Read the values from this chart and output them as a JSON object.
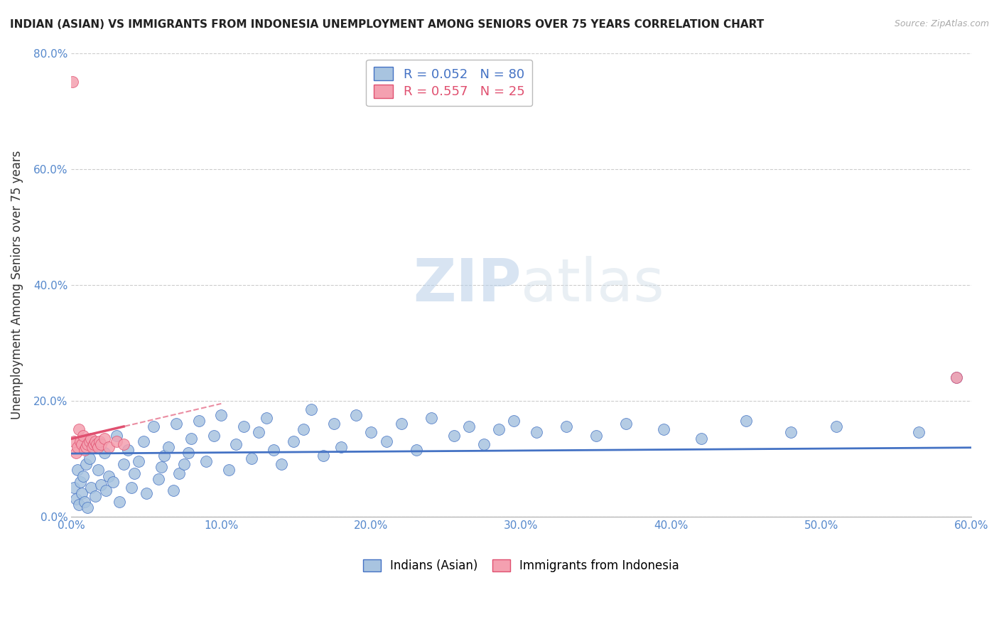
{
  "title": "INDIAN (ASIAN) VS IMMIGRANTS FROM INDONESIA UNEMPLOYMENT AMONG SENIORS OVER 75 YEARS CORRELATION CHART",
  "source": "Source: ZipAtlas.com",
  "ylabel": "Unemployment Among Seniors over 75 years",
  "xmin": 0.0,
  "xmax": 0.6,
  "ymin": 0.0,
  "ymax": 0.8,
  "xticks": [
    0.0,
    0.1,
    0.2,
    0.3,
    0.4,
    0.5,
    0.6
  ],
  "yticks": [
    0.0,
    0.2,
    0.4,
    0.6,
    0.8
  ],
  "blue_R": 0.052,
  "blue_N": 80,
  "pink_R": 0.557,
  "pink_N": 25,
  "blue_color": "#a8c4e0",
  "pink_color": "#f4a0b0",
  "blue_line_color": "#4472c4",
  "pink_line_color": "#e05070",
  "watermark_zip": "ZIP",
  "watermark_atlas": "atlas",
  "legend_label_blue": "Indians (Asian)",
  "legend_label_pink": "Immigrants from Indonesia",
  "blue_scatter_x": [
    0.002,
    0.003,
    0.004,
    0.005,
    0.006,
    0.007,
    0.008,
    0.009,
    0.01,
    0.011,
    0.012,
    0.013,
    0.015,
    0.016,
    0.018,
    0.02,
    0.022,
    0.023,
    0.025,
    0.028,
    0.03,
    0.032,
    0.035,
    0.038,
    0.04,
    0.042,
    0.045,
    0.048,
    0.05,
    0.055,
    0.058,
    0.06,
    0.062,
    0.065,
    0.068,
    0.07,
    0.072,
    0.075,
    0.078,
    0.08,
    0.085,
    0.09,
    0.095,
    0.1,
    0.105,
    0.11,
    0.115,
    0.12,
    0.125,
    0.13,
    0.135,
    0.14,
    0.148,
    0.155,
    0.16,
    0.168,
    0.175,
    0.18,
    0.19,
    0.2,
    0.21,
    0.22,
    0.23,
    0.24,
    0.255,
    0.265,
    0.275,
    0.285,
    0.295,
    0.31,
    0.33,
    0.35,
    0.37,
    0.395,
    0.42,
    0.45,
    0.48,
    0.51,
    0.565,
    0.59
  ],
  "blue_scatter_y": [
    0.05,
    0.03,
    0.08,
    0.02,
    0.06,
    0.04,
    0.07,
    0.025,
    0.09,
    0.015,
    0.1,
    0.05,
    0.12,
    0.035,
    0.08,
    0.055,
    0.11,
    0.045,
    0.07,
    0.06,
    0.14,
    0.025,
    0.09,
    0.115,
    0.05,
    0.075,
    0.095,
    0.13,
    0.04,
    0.155,
    0.065,
    0.085,
    0.105,
    0.12,
    0.045,
    0.16,
    0.075,
    0.09,
    0.11,
    0.135,
    0.165,
    0.095,
    0.14,
    0.175,
    0.08,
    0.125,
    0.155,
    0.1,
    0.145,
    0.17,
    0.115,
    0.09,
    0.13,
    0.15,
    0.185,
    0.105,
    0.16,
    0.12,
    0.175,
    0.145,
    0.13,
    0.16,
    0.115,
    0.17,
    0.14,
    0.155,
    0.125,
    0.15,
    0.165,
    0.145,
    0.155,
    0.14,
    0.16,
    0.15,
    0.135,
    0.165,
    0.145,
    0.155,
    0.145,
    0.24
  ],
  "pink_scatter_x": [
    0.001,
    0.002,
    0.003,
    0.004,
    0.005,
    0.006,
    0.007,
    0.008,
    0.009,
    0.01,
    0.011,
    0.012,
    0.013,
    0.014,
    0.015,
    0.016,
    0.017,
    0.018,
    0.019,
    0.02,
    0.022,
    0.025,
    0.03,
    0.035,
    0.59
  ],
  "pink_scatter_y": [
    0.75,
    0.13,
    0.11,
    0.12,
    0.15,
    0.13,
    0.125,
    0.14,
    0.115,
    0.12,
    0.125,
    0.13,
    0.135,
    0.12,
    0.125,
    0.13,
    0.125,
    0.12,
    0.13,
    0.125,
    0.135,
    0.12,
    0.13,
    0.125,
    0.24
  ]
}
